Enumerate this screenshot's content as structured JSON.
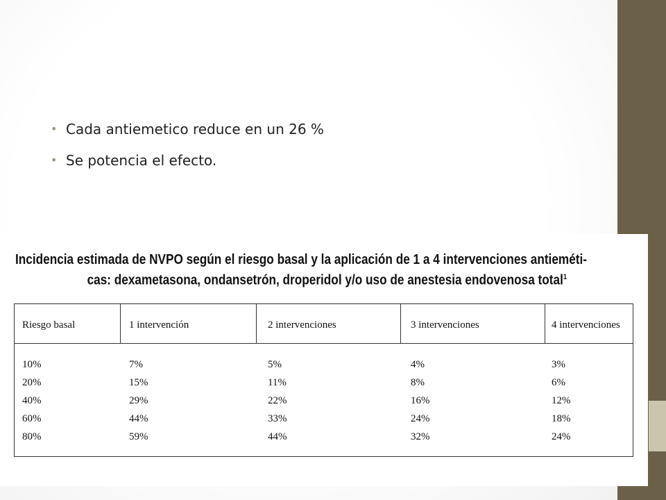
{
  "bullets": [
    "Cada antiemetico reduce en un 26 %",
    "Se potencia el efecto."
  ],
  "figure": {
    "title_line1": "Incidencia estimada de NVPO según el riesgo basal y la aplicación de 1 a 4 intervenciones antieméti-",
    "title_line2": "cas: dexametasona, ondansetrón, droperidol y/o uso de anestesia endovenosa total",
    "title_sup": "1",
    "headers": [
      "Riesgo basal",
      "1 intervención",
      "2 intervenciones",
      "3 intervenciones",
      "4 intervenciones"
    ],
    "columns": [
      [
        "10%",
        "20%",
        "40%",
        "60%",
        "80%"
      ],
      [
        "7%",
        "15%",
        "29%",
        "44%",
        "59%"
      ],
      [
        "5%",
        "11%",
        "22%",
        "33%",
        "44%"
      ],
      [
        "4%",
        "8%",
        "16%",
        "24%",
        "32%"
      ],
      [
        "3%",
        "6%",
        "12%",
        "18%",
        "24%"
      ]
    ]
  },
  "theme": {
    "side_bar_color": "#6b6149",
    "accent_color": "#c9c6ad",
    "bullet_color": "#9c9479"
  }
}
